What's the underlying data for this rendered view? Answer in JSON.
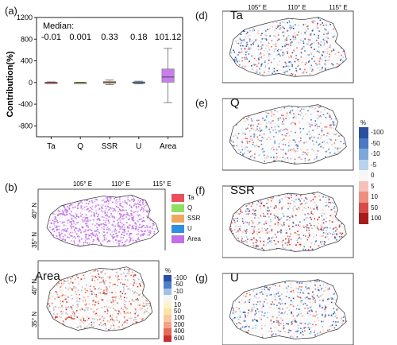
{
  "panel_labels": {
    "a": "(a)",
    "b": "(b)",
    "c": "(c)",
    "d": "(d)",
    "e": "(e)",
    "f": "(f)",
    "g": "(g)"
  },
  "map_titles": {
    "c": "Area",
    "d": "Ta",
    "e": "Q",
    "f": "SSR",
    "g": "U"
  },
  "lon_ticks_b": [
    "105° E",
    "110° E",
    "115° E"
  ],
  "lon_ticks_d": [
    "105° E",
    "110° E",
    "115° E"
  ],
  "lat_ticks": [
    "40° N",
    "35° N"
  ],
  "legend_b": [
    {
      "name": "Ta",
      "color": "#e8505b"
    },
    {
      "name": "Q",
      "color": "#8fe060"
    },
    {
      "name": "SSR",
      "color": "#f0a860"
    },
    {
      "name": "U",
      "color": "#2f8fe0"
    },
    {
      "name": "Area",
      "color": "#c070e8"
    }
  ],
  "colorbar_c": {
    "unit": "%",
    "labels": [
      "-100",
      "-50",
      "-10",
      "0",
      "10",
      "50",
      "100",
      "200",
      "400",
      "600"
    ],
    "colors": [
      "#2b4fa0",
      "#4f7fc6",
      "#9ec2e6",
      "#f4f4f4",
      "#fff3c8",
      "#fde3a8",
      "#fbc9a0",
      "#f5a08a",
      "#e46a5a",
      "#c82f2f"
    ]
  },
  "colorbar_e": {
    "unit": "%",
    "labels": [
      "-100",
      "-50",
      "-10",
      "-5",
      "0",
      "5",
      "10",
      "50",
      "100"
    ],
    "colors": [
      "#2b4fa0",
      "#4a78c2",
      "#7da6da",
      "#b9d3ee",
      "#f7f7f7",
      "#f6c2b8",
      "#ee8e80",
      "#d84a45",
      "#a61c1c"
    ]
  },
  "chart_data": {
    "type": "box",
    "title": "",
    "xlabel": "",
    "ylabel": "Contribution(%)",
    "ylim": [
      -1000,
      1200
    ],
    "yticks": [
      -800,
      -400,
      0,
      400,
      800,
      1200
    ],
    "categories": [
      "Ta",
      "Q",
      "SSR",
      "U",
      "Area"
    ],
    "median_label": "Median:",
    "median_values": [
      "-0.01",
      "0.001",
      "0.33",
      "0.18",
      "101.12"
    ],
    "boxes": [
      {
        "name": "Ta",
        "color": "#e8505b",
        "whisker_low": -12,
        "q1": -6,
        "median": -0.01,
        "q3": 6,
        "whisker_high": 12
      },
      {
        "name": "Q",
        "color": "#b8c84a",
        "whisker_low": -6,
        "q1": -3,
        "median": 0.001,
        "q3": 3,
        "whisker_high": 6
      },
      {
        "name": "SSR",
        "color": "#e8a040",
        "whisker_low": -40,
        "q1": -15,
        "median": 0.33,
        "q3": 20,
        "whisker_high": 45
      },
      {
        "name": "U",
        "color": "#2f8fe0",
        "whisker_low": -25,
        "q1": -12,
        "median": 0.18,
        "q3": 12,
        "whisker_high": 25
      },
      {
        "name": "Area",
        "color": "#c070e8",
        "whisker_low": -370,
        "q1": 5,
        "median": 101.12,
        "q3": 250,
        "whisker_high": 630
      }
    ]
  }
}
